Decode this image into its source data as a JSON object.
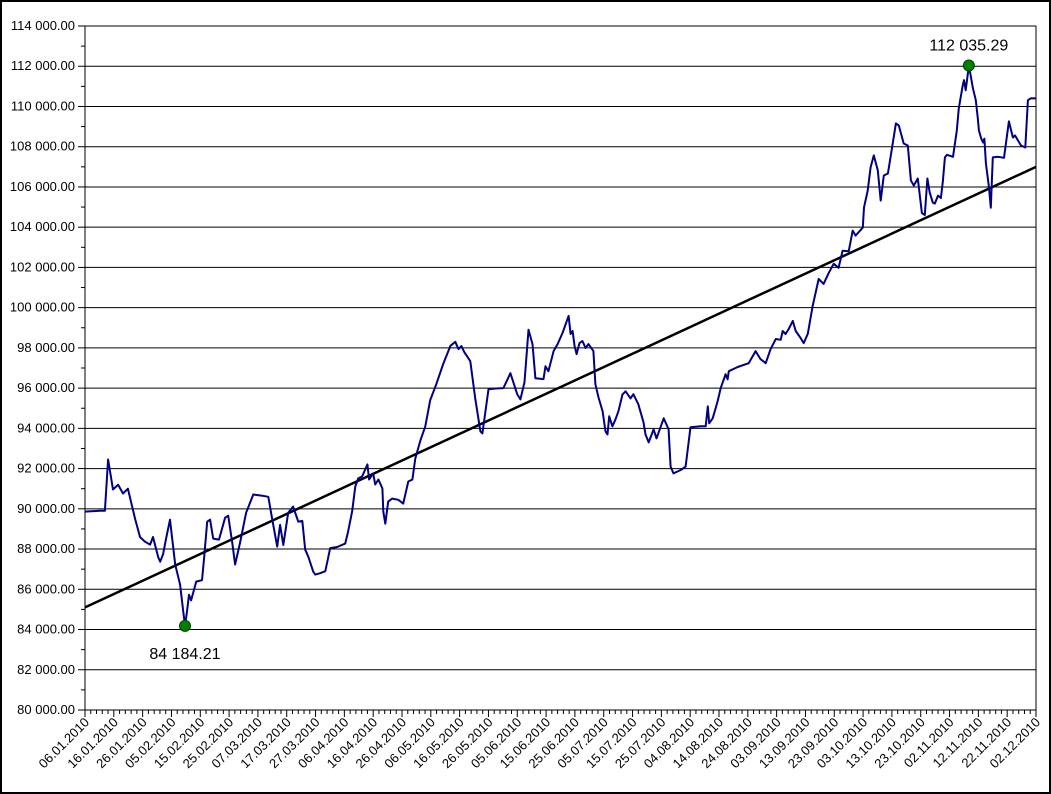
{
  "chart_data": {
    "type": "line",
    "title": "",
    "xlabel": "",
    "ylabel": "",
    "grid": true,
    "legend": null,
    "x_range": [
      0,
      330
    ],
    "y_range": [
      80000,
      114000
    ],
    "y_major_step": 2000,
    "y_minor_step": 1000,
    "x_label_step_days": 10,
    "x_minor_step_days": 2,
    "y_tick_labels": [
      {
        "value": 80000,
        "label": "80 000.00"
      },
      {
        "value": 82000,
        "label": "82 000.00"
      },
      {
        "value": 84000,
        "label": "84 000.00"
      },
      {
        "value": 86000,
        "label": "86 000.00"
      },
      {
        "value": 88000,
        "label": "88 000.00"
      },
      {
        "value": 90000,
        "label": "90 000.00"
      },
      {
        "value": 92000,
        "label": "92 000.00"
      },
      {
        "value": 94000,
        "label": "94 000.00"
      },
      {
        "value": 96000,
        "label": "96 000.00"
      },
      {
        "value": 98000,
        "label": "98 000.00"
      },
      {
        "value": 100000,
        "label": "100 000.00"
      },
      {
        "value": 102000,
        "label": "102 000.00"
      },
      {
        "value": 104000,
        "label": "104 000.00"
      },
      {
        "value": 106000,
        "label": "106 000.00"
      },
      {
        "value": 108000,
        "label": "108 000.00"
      },
      {
        "value": 110000,
        "label": "110 000.00"
      },
      {
        "value": 112000,
        "label": "112 000.00"
      },
      {
        "value": 114000,
        "label": "114 000.00"
      }
    ],
    "x_tick_labels": [
      "06.01.2010",
      "16.01.2010",
      "26.01.2010",
      "05.02.2010",
      "15.02.2010",
      "25.02.2010",
      "07.03.2010",
      "17.03.2010",
      "27.03.2010",
      "06.04.2010",
      "16.04.2010",
      "26.04.2010",
      "06.05.2010",
      "16.05.2010",
      "26.05.2010",
      "05.06.2010",
      "15.06.2010",
      "25.06.2010",
      "05.07.2010",
      "15.07.2010",
      "25.07.2010",
      "04.08.2010",
      "14.08.2010",
      "24.08.2010",
      "03.09.2010",
      "13.09.2010",
      "23.09.2010",
      "03.10.2010",
      "13.10.2010",
      "23.10.2010",
      "02.11.2010",
      "12.11.2010",
      "22.11.2010",
      "02.12.2010"
    ],
    "series": [
      {
        "name": "value",
        "color": "#000080",
        "points": [
          [
            0,
            89860
          ],
          [
            5.2,
            89900
          ],
          [
            6.9,
            89900
          ],
          [
            8,
            92450
          ],
          [
            9.7,
            90960
          ],
          [
            11.5,
            91200
          ],
          [
            13.2,
            90760
          ],
          [
            14.9,
            91000
          ],
          [
            17.4,
            89500
          ],
          [
            19.1,
            88600
          ],
          [
            20.8,
            88370
          ],
          [
            22.6,
            88220
          ],
          [
            23.6,
            88600
          ],
          [
            25.4,
            87600
          ],
          [
            26.1,
            87370
          ],
          [
            27.1,
            87750
          ],
          [
            28.1,
            88500
          ],
          [
            29.5,
            89460
          ],
          [
            31.3,
            87230
          ],
          [
            33,
            86230
          ],
          [
            34,
            85000
          ],
          [
            34.7,
            84184.21
          ],
          [
            35.4,
            84900
          ],
          [
            36.1,
            85730
          ],
          [
            36.8,
            85450
          ],
          [
            38.6,
            86380
          ],
          [
            40.6,
            86450
          ],
          [
            41.3,
            87500
          ],
          [
            42.4,
            89360
          ],
          [
            43.4,
            89460
          ],
          [
            44.5,
            88520
          ],
          [
            46.5,
            88470
          ],
          [
            48.6,
            89560
          ],
          [
            49.7,
            89660
          ],
          [
            51.1,
            88300
          ],
          [
            52.1,
            87230
          ],
          [
            53.8,
            88300
          ],
          [
            55.9,
            89800
          ],
          [
            58.4,
            90710
          ],
          [
            61.5,
            90650
          ],
          [
            63.6,
            90600
          ],
          [
            65,
            89460
          ],
          [
            66.7,
            88120
          ],
          [
            67.7,
            89200
          ],
          [
            68.8,
            88200
          ],
          [
            70.5,
            89800
          ],
          [
            72.2,
            90110
          ],
          [
            74,
            89360
          ],
          [
            75.4,
            89400
          ],
          [
            76.4,
            87970
          ],
          [
            77.5,
            87620
          ],
          [
            79.2,
            86880
          ],
          [
            79.9,
            86730
          ],
          [
            81.6,
            86800
          ],
          [
            83.4,
            86900
          ],
          [
            85.1,
            88050
          ],
          [
            87.5,
            88100
          ],
          [
            90.3,
            88270
          ],
          [
            91.3,
            88870
          ],
          [
            92.7,
            89860
          ],
          [
            93.8,
            91110
          ],
          [
            94.8,
            91510
          ],
          [
            96.2,
            91610
          ],
          [
            98,
            92210
          ],
          [
            98.6,
            91460
          ],
          [
            100,
            91760
          ],
          [
            100.7,
            91210
          ],
          [
            101.8,
            91460
          ],
          [
            103.2,
            91010
          ],
          [
            103.5,
            89860
          ],
          [
            104.2,
            89260
          ],
          [
            105.2,
            90360
          ],
          [
            106.6,
            90510
          ],
          [
            108.7,
            90450
          ],
          [
            110.4,
            90260
          ],
          [
            112.2,
            91360
          ],
          [
            113.6,
            91460
          ],
          [
            114.6,
            92500
          ],
          [
            116.4,
            93400
          ],
          [
            118.1,
            94100
          ],
          [
            119.8,
            95400
          ],
          [
            121.9,
            96200
          ],
          [
            124.3,
            97200
          ],
          [
            126.8,
            98100
          ],
          [
            128.5,
            98300
          ],
          [
            129.6,
            97940
          ],
          [
            130.6,
            98090
          ],
          [
            131.6,
            97800
          ],
          [
            133.7,
            97340
          ],
          [
            135.4,
            95500
          ],
          [
            137.2,
            93850
          ],
          [
            137.9,
            93750
          ],
          [
            140,
            95940
          ],
          [
            142.4,
            95980
          ],
          [
            145.2,
            96000
          ],
          [
            147.6,
            96740
          ],
          [
            150,
            95690
          ],
          [
            151.1,
            95440
          ],
          [
            152.5,
            96300
          ],
          [
            153.9,
            98900
          ],
          [
            155.3,
            98190
          ],
          [
            156.3,
            96490
          ],
          [
            159.1,
            96450
          ],
          [
            159.8,
            97090
          ],
          [
            160.8,
            96840
          ],
          [
            162.6,
            97840
          ],
          [
            164,
            98190
          ],
          [
            165.7,
            98740
          ],
          [
            167.8,
            99590
          ],
          [
            168.5,
            98690
          ],
          [
            169.2,
            98840
          ],
          [
            169.9,
            98090
          ],
          [
            170.6,
            97690
          ],
          [
            171.6,
            98240
          ],
          [
            172.6,
            98340
          ],
          [
            173.7,
            98000
          ],
          [
            174.7,
            98190
          ],
          [
            176.4,
            97840
          ],
          [
            177.1,
            96190
          ],
          [
            178.2,
            95540
          ],
          [
            179.6,
            94850
          ],
          [
            180.6,
            93850
          ],
          [
            181.3,
            93700
          ],
          [
            181.9,
            94600
          ],
          [
            183,
            94100
          ],
          [
            184.1,
            94450
          ],
          [
            185.1,
            94850
          ],
          [
            186.5,
            95690
          ],
          [
            187.6,
            95840
          ],
          [
            189.3,
            95490
          ],
          [
            190.3,
            95700
          ],
          [
            192,
            95200
          ],
          [
            193.8,
            94300
          ],
          [
            194.5,
            93700
          ],
          [
            195.6,
            93300
          ],
          [
            197.3,
            93950
          ],
          [
            198.3,
            93500
          ],
          [
            200.8,
            94500
          ],
          [
            202.5,
            93950
          ],
          [
            203.2,
            92100
          ],
          [
            204.2,
            91760
          ],
          [
            207,
            91950
          ],
          [
            208.4,
            92100
          ],
          [
            210.1,
            94050
          ],
          [
            213.6,
            94100
          ],
          [
            215.4,
            94100
          ],
          [
            216.1,
            95090
          ],
          [
            216.6,
            94250
          ],
          [
            217.8,
            94500
          ],
          [
            219.5,
            95340
          ],
          [
            220.6,
            96000
          ],
          [
            222.3,
            96690
          ],
          [
            223,
            96440
          ],
          [
            223.4,
            96840
          ],
          [
            226.5,
            97050
          ],
          [
            230.3,
            97240
          ],
          [
            232.7,
            97840
          ],
          [
            234.4,
            97440
          ],
          [
            236.2,
            97240
          ],
          [
            237.9,
            97940
          ],
          [
            239.7,
            98440
          ],
          [
            241.4,
            98400
          ],
          [
            242.1,
            98840
          ],
          [
            243.1,
            98690
          ],
          [
            244.2,
            98940
          ],
          [
            245.6,
            99340
          ],
          [
            246.6,
            98840
          ],
          [
            248.3,
            98490
          ],
          [
            249.4,
            98240
          ],
          [
            250.8,
            98700
          ],
          [
            252.5,
            100090
          ],
          [
            254.6,
            101430
          ],
          [
            256.3,
            101180
          ],
          [
            258.1,
            101730
          ],
          [
            259.8,
            102180
          ],
          [
            261.5,
            101980
          ],
          [
            262.9,
            102830
          ],
          [
            265,
            102800
          ],
          [
            266.4,
            103830
          ],
          [
            267.4,
            103580
          ],
          [
            269.9,
            103980
          ],
          [
            270.3,
            104980
          ],
          [
            271.6,
            105820
          ],
          [
            272.6,
            106970
          ],
          [
            273.7,
            107570
          ],
          [
            275.1,
            106820
          ],
          [
            276.1,
            105320
          ],
          [
            277.2,
            106570
          ],
          [
            278.6,
            106670
          ],
          [
            280,
            107900
          ],
          [
            281.4,
            109160
          ],
          [
            282.4,
            109060
          ],
          [
            284.1,
            108160
          ],
          [
            285.5,
            108060
          ],
          [
            286.6,
            106320
          ],
          [
            287.6,
            106070
          ],
          [
            289,
            106420
          ],
          [
            290.4,
            104700
          ],
          [
            291.4,
            104600
          ],
          [
            292.3,
            106420
          ],
          [
            293.1,
            105720
          ],
          [
            294.2,
            105220
          ],
          [
            294.9,
            105170
          ],
          [
            296,
            105570
          ],
          [
            297,
            105450
          ],
          [
            297.7,
            106300
          ],
          [
            298.4,
            107470
          ],
          [
            299.1,
            107600
          ],
          [
            301.2,
            107500
          ],
          [
            302.5,
            108800
          ],
          [
            303.2,
            109910
          ],
          [
            304.6,
            111060
          ],
          [
            305,
            111310
          ],
          [
            305.6,
            110810
          ],
          [
            306.7,
            112035.29
          ],
          [
            308.1,
            110910
          ],
          [
            309.1,
            110310
          ],
          [
            309.8,
            109410
          ],
          [
            310.2,
            108810
          ],
          [
            311,
            108410
          ],
          [
            311.6,
            108210
          ],
          [
            312.1,
            108400
          ],
          [
            312.6,
            107170
          ],
          [
            313.7,
            105970
          ],
          [
            314.3,
            104970
          ],
          [
            315,
            107470
          ],
          [
            316.8,
            107500
          ],
          [
            318.9,
            107450
          ],
          [
            320.6,
            109260
          ],
          [
            322,
            108460
          ],
          [
            322.7,
            108560
          ],
          [
            324.8,
            108060
          ],
          [
            326.3,
            107960
          ],
          [
            327.2,
            110310
          ],
          [
            328.3,
            110410
          ],
          [
            330,
            110400
          ]
        ]
      }
    ],
    "trend_line": {
      "start_value": 85100,
      "end_value": 107000,
      "color": "#000000"
    },
    "annotations": [
      {
        "text": "84 184.21",
        "day": 34.7,
        "value": 84184.21,
        "placement": "below"
      },
      {
        "text": "112 035.29",
        "day": 306.7,
        "value": 112035.29,
        "placement": "above"
      }
    ],
    "colors": {
      "series": "#000080",
      "trend": "#000000",
      "marker_fill": "#008000",
      "marker_stroke": "#004000",
      "grid": "#000000",
      "background": "#FFFFFF",
      "text": "#000000",
      "frame_border": "#000000"
    }
  }
}
